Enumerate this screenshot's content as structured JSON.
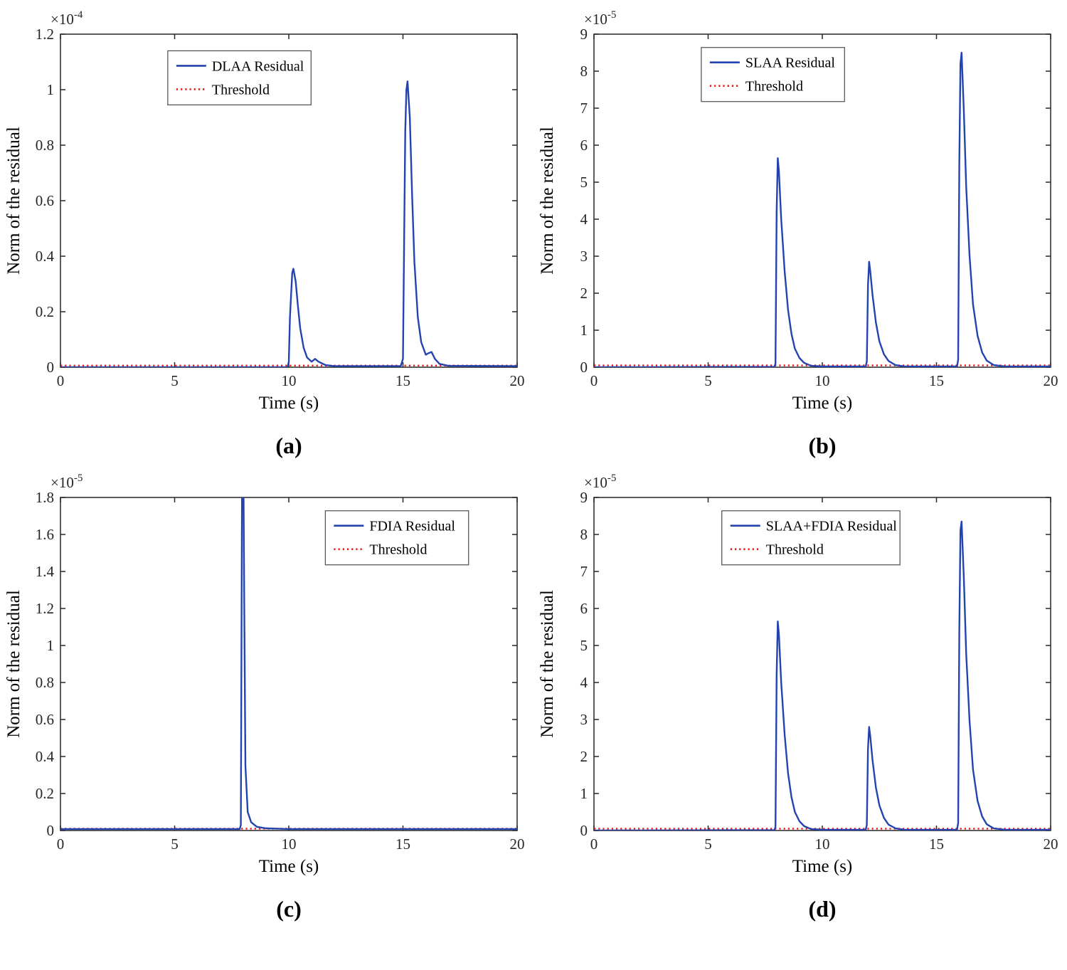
{
  "page": {
    "background": "#ffffff"
  },
  "styles": {
    "line_color": "#2344b0",
    "threshold_color": "#ec1515",
    "axis_color": "#262626",
    "tick_text_color": "#262626",
    "label_text_color": "#000000",
    "legend_border_color": "#4d4d4d"
  },
  "chart_data": [
    {
      "id": "a",
      "type": "line",
      "caption": "(a)",
      "xlabel": "Time (s)",
      "ylabel": "Norm of the residual",
      "xlim": [
        0,
        20
      ],
      "ylim": [
        0,
        1.2
      ],
      "xticks": [
        "0",
        "5",
        "10",
        "15",
        "20"
      ],
      "yticks": [
        "0",
        "0.2",
        "0.4",
        "0.6",
        "0.8",
        "1",
        "1.2"
      ],
      "y_exponent": {
        "base": "×10",
        "power": "-4"
      },
      "legend": [
        {
          "label": "DLAA Residual",
          "style": "solid"
        },
        {
          "label": "Threshold",
          "style": "dotted"
        }
      ],
      "legend_pos": {
        "x": 0.235,
        "y": 0.05
      },
      "threshold_value": 0.006,
      "series": [
        {
          "name": "DLAA Residual",
          "points": [
            [
              0,
              0
            ],
            [
              9.95,
              0
            ],
            [
              10.0,
              0.02
            ],
            [
              10.05,
              0.18
            ],
            [
              10.15,
              0.34
            ],
            [
              10.2,
              0.355
            ],
            [
              10.3,
              0.31
            ],
            [
              10.4,
              0.22
            ],
            [
              10.5,
              0.14
            ],
            [
              10.65,
              0.07
            ],
            [
              10.8,
              0.035
            ],
            [
              11.0,
              0.02
            ],
            [
              11.15,
              0.03
            ],
            [
              11.3,
              0.02
            ],
            [
              11.6,
              0.008
            ],
            [
              12.0,
              0.004
            ],
            [
              14.9,
              0.004
            ],
            [
              15.0,
              0.03
            ],
            [
              15.05,
              0.45
            ],
            [
              15.1,
              0.85
            ],
            [
              15.15,
              1.0
            ],
            [
              15.2,
              1.03
            ],
            [
              15.3,
              0.9
            ],
            [
              15.4,
              0.62
            ],
            [
              15.5,
              0.38
            ],
            [
              15.65,
              0.18
            ],
            [
              15.8,
              0.09
            ],
            [
              16.0,
              0.045
            ],
            [
              16.1,
              0.05
            ],
            [
              16.25,
              0.055
            ],
            [
              16.4,
              0.03
            ],
            [
              16.6,
              0.012
            ],
            [
              17.0,
              0.005
            ],
            [
              20,
              0.004
            ]
          ]
        }
      ]
    },
    {
      "id": "b",
      "type": "line",
      "caption": "(b)",
      "xlabel": "Time (s)",
      "ylabel": "Norm of the residual",
      "xlim": [
        0,
        20
      ],
      "ylim": [
        0,
        9
      ],
      "xticks": [
        "0",
        "5",
        "10",
        "15",
        "20"
      ],
      "yticks": [
        "0",
        "1",
        "2",
        "3",
        "4",
        "5",
        "6",
        "7",
        "8",
        "9"
      ],
      "y_exponent": {
        "base": "×10",
        "power": "-5"
      },
      "legend": [
        {
          "label": "SLAA Residual",
          "style": "solid"
        },
        {
          "label": "Threshold",
          "style": "dotted"
        }
      ],
      "legend_pos": {
        "x": 0.235,
        "y": 0.04
      },
      "threshold_value": 0.05,
      "series": [
        {
          "name": "SLAA Residual",
          "points": [
            [
              0,
              0
            ],
            [
              7.9,
              0.01
            ],
            [
              7.95,
              0.1
            ],
            [
              8.0,
              4.2
            ],
            [
              8.05,
              5.65
            ],
            [
              8.1,
              5.3
            ],
            [
              8.2,
              4.0
            ],
            [
              8.35,
              2.6
            ],
            [
              8.5,
              1.55
            ],
            [
              8.65,
              0.9
            ],
            [
              8.8,
              0.5
            ],
            [
              9.0,
              0.25
            ],
            [
              9.2,
              0.12
            ],
            [
              9.5,
              0.04
            ],
            [
              10,
              0.02
            ],
            [
              11.9,
              0.02
            ],
            [
              11.95,
              0.15
            ],
            [
              12.0,
              2.2
            ],
            [
              12.05,
              2.85
            ],
            [
              12.1,
              2.6
            ],
            [
              12.2,
              1.95
            ],
            [
              12.35,
              1.2
            ],
            [
              12.5,
              0.7
            ],
            [
              12.7,
              0.35
            ],
            [
              12.9,
              0.17
            ],
            [
              13.2,
              0.06
            ],
            [
              13.6,
              0.02
            ],
            [
              15.9,
              0.02
            ],
            [
              15.95,
              0.2
            ],
            [
              16.0,
              5.5
            ],
            [
              16.05,
              8.2
            ],
            [
              16.1,
              8.5
            ],
            [
              16.2,
              6.9
            ],
            [
              16.3,
              4.9
            ],
            [
              16.45,
              3.0
            ],
            [
              16.6,
              1.7
            ],
            [
              16.8,
              0.85
            ],
            [
              17.0,
              0.4
            ],
            [
              17.2,
              0.18
            ],
            [
              17.5,
              0.06
            ],
            [
              18,
              0.02
            ],
            [
              20,
              0.02
            ]
          ]
        }
      ]
    },
    {
      "id": "c",
      "type": "line",
      "caption": "(c)",
      "xlabel": "Time (s)",
      "ylabel": "Norm of the residual",
      "xlim": [
        0,
        20
      ],
      "ylim": [
        0,
        1.8
      ],
      "xticks": [
        "0",
        "5",
        "10",
        "15",
        "20"
      ],
      "yticks": [
        "0",
        "0.2",
        "0.4",
        "0.6",
        "0.8",
        "1",
        "1.2",
        "1.4",
        "1.6",
        "1.8"
      ],
      "y_exponent": {
        "base": "×10",
        "power": "-5"
      },
      "legend": [
        {
          "label": "FDIA Residual",
          "style": "solid"
        },
        {
          "label": "Threshold",
          "style": "dotted"
        }
      ],
      "legend_pos": {
        "x": 0.58,
        "y": 0.04
      },
      "threshold_value": 0.01,
      "series": [
        {
          "name": "FDIA Residual",
          "points": [
            [
              0,
              0.008
            ],
            [
              7.85,
              0.008
            ],
            [
              7.9,
              0.03
            ],
            [
              7.95,
              1.8
            ],
            [
              8.02,
              1.8
            ],
            [
              8.05,
              1.2
            ],
            [
              8.1,
              0.35
            ],
            [
              8.2,
              0.1
            ],
            [
              8.35,
              0.045
            ],
            [
              8.6,
              0.02
            ],
            [
              9.0,
              0.012
            ],
            [
              10,
              0.008
            ],
            [
              20,
              0.008
            ]
          ]
        }
      ]
    },
    {
      "id": "d",
      "type": "line",
      "caption": "(d)",
      "xlabel": "Time (s)",
      "ylabel": "Norm of the residual",
      "xlim": [
        0,
        20
      ],
      "ylim": [
        0,
        9
      ],
      "xticks": [
        "0",
        "5",
        "10",
        "15",
        "20"
      ],
      "yticks": [
        "0",
        "1",
        "2",
        "3",
        "4",
        "5",
        "6",
        "7",
        "8",
        "9"
      ],
      "y_exponent": {
        "base": "×10",
        "power": "-5"
      },
      "legend": [
        {
          "label": "SLAA+FDIA Residual",
          "style": "solid"
        },
        {
          "label": "Threshold",
          "style": "dotted"
        }
      ],
      "legend_pos": {
        "x": 0.28,
        "y": 0.04
      },
      "threshold_value": 0.05,
      "series": [
        {
          "name": "SLAA+FDIA Residual",
          "points": [
            [
              0,
              0
            ],
            [
              7.9,
              0.01
            ],
            [
              7.95,
              0.1
            ],
            [
              8.0,
              4.2
            ],
            [
              8.05,
              5.65
            ],
            [
              8.1,
              5.3
            ],
            [
              8.2,
              4.0
            ],
            [
              8.35,
              2.6
            ],
            [
              8.5,
              1.55
            ],
            [
              8.65,
              0.9
            ],
            [
              8.8,
              0.5
            ],
            [
              9.0,
              0.25
            ],
            [
              9.2,
              0.12
            ],
            [
              9.5,
              0.04
            ],
            [
              10,
              0.02
            ],
            [
              11.9,
              0.02
            ],
            [
              11.95,
              0.15
            ],
            [
              12.0,
              2.2
            ],
            [
              12.05,
              2.8
            ],
            [
              12.1,
              2.55
            ],
            [
              12.2,
              1.9
            ],
            [
              12.35,
              1.15
            ],
            [
              12.5,
              0.68
            ],
            [
              12.7,
              0.34
            ],
            [
              12.9,
              0.16
            ],
            [
              13.2,
              0.06
            ],
            [
              13.6,
              0.02
            ],
            [
              15.9,
              0.02
            ],
            [
              15.95,
              0.2
            ],
            [
              16.0,
              5.4
            ],
            [
              16.05,
              8.1
            ],
            [
              16.1,
              8.35
            ],
            [
              16.2,
              6.8
            ],
            [
              16.3,
              4.8
            ],
            [
              16.45,
              2.95
            ],
            [
              16.6,
              1.65
            ],
            [
              16.8,
              0.8
            ],
            [
              17.0,
              0.38
            ],
            [
              17.2,
              0.17
            ],
            [
              17.5,
              0.06
            ],
            [
              18,
              0.02
            ],
            [
              20,
              0.02
            ]
          ]
        }
      ]
    }
  ]
}
